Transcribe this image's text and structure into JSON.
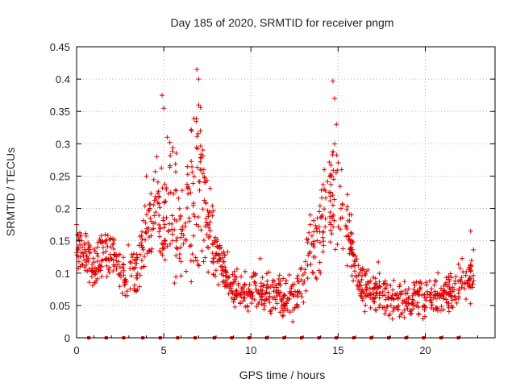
{
  "chart_data": {
    "type": "scatter",
    "title": "Day 185 of 2020, SRMTID for receiver pngm",
    "xlabel": "GPS time / hours",
    "ylabel": "SRMTID / TECUs",
    "xlim": [
      0,
      24
    ],
    "ylim": [
      0,
      0.45
    ],
    "x_ticks": [
      0,
      5,
      10,
      15,
      20
    ],
    "x_tick_labels": [
      "0",
      "5",
      "10",
      "15",
      "20"
    ],
    "y_ticks": [
      0,
      0.05,
      0.1,
      0.15,
      0.2,
      0.25,
      0.3,
      0.35,
      0.4,
      0.45
    ],
    "y_tick_labels": [
      "0",
      "0.05",
      "0.1",
      "0.15",
      "0.2",
      "0.25",
      "0.3",
      "0.35",
      "0.4",
      "0.45"
    ],
    "grid": true,
    "marker": "+",
    "colors": {
      "series": "#dd0000",
      "grid": "#b0b0b0",
      "axis": "#000000"
    },
    "baseline_markers_x": [
      0.7,
      1.7,
      2.7,
      3.8,
      4.8,
      5.8,
      6.8,
      7.9,
      8.9,
      9.9,
      10.9,
      11.9,
      12.9,
      13.9,
      14.9,
      15.9,
      16.9,
      17.9,
      18.9,
      19.9,
      20.9,
      21.9
    ],
    "envelope": [
      [
        0.0,
        0.12,
        0.16
      ],
      [
        0.5,
        0.11,
        0.15
      ],
      [
        1.0,
        0.08,
        0.12
      ],
      [
        1.5,
        0.1,
        0.15
      ],
      [
        2.0,
        0.11,
        0.15
      ],
      [
        2.5,
        0.08,
        0.12
      ],
      [
        3.0,
        0.07,
        0.11
      ],
      [
        3.5,
        0.08,
        0.13
      ],
      [
        4.0,
        0.13,
        0.21
      ],
      [
        4.5,
        0.15,
        0.24
      ],
      [
        5.0,
        0.12,
        0.22
      ],
      [
        5.5,
        0.14,
        0.3
      ],
      [
        6.0,
        0.11,
        0.2
      ],
      [
        6.5,
        0.12,
        0.26
      ],
      [
        7.0,
        0.15,
        0.33
      ],
      [
        7.5,
        0.13,
        0.22
      ],
      [
        8.0,
        0.1,
        0.16
      ],
      [
        8.5,
        0.08,
        0.12
      ],
      [
        9.0,
        0.06,
        0.1
      ],
      [
        10.0,
        0.05,
        0.09
      ],
      [
        11.0,
        0.05,
        0.09
      ],
      [
        12.0,
        0.04,
        0.08
      ],
      [
        12.5,
        0.05,
        0.08
      ],
      [
        13.0,
        0.06,
        0.12
      ],
      [
        13.5,
        0.1,
        0.17
      ],
      [
        14.0,
        0.13,
        0.22
      ],
      [
        14.5,
        0.16,
        0.27
      ],
      [
        15.0,
        0.15,
        0.25
      ],
      [
        15.5,
        0.12,
        0.19
      ],
      [
        16.0,
        0.09,
        0.13
      ],
      [
        16.5,
        0.05,
        0.09
      ],
      [
        17.0,
        0.05,
        0.09
      ],
      [
        18.0,
        0.04,
        0.08
      ],
      [
        19.0,
        0.04,
        0.07
      ],
      [
        20.0,
        0.04,
        0.08
      ],
      [
        21.0,
        0.05,
        0.08
      ],
      [
        22.0,
        0.06,
        0.11
      ],
      [
        22.8,
        0.07,
        0.12
      ]
    ],
    "point_density_per_hour": 55,
    "x_extent": [
      0.0,
      22.8
    ],
    "peaks": [
      [
        4.9,
        0.375
      ],
      [
        5.0,
        0.355
      ],
      [
        5.2,
        0.31
      ],
      [
        6.6,
        0.32
      ],
      [
        6.9,
        0.415
      ],
      [
        7.0,
        0.4
      ],
      [
        7.0,
        0.36
      ],
      [
        7.1,
        0.32
      ],
      [
        14.7,
        0.397
      ],
      [
        14.8,
        0.37
      ],
      [
        14.9,
        0.33
      ],
      [
        14.8,
        0.3
      ],
      [
        4.6,
        0.28
      ],
      [
        4.0,
        0.25
      ],
      [
        15.2,
        0.26
      ],
      [
        7.3,
        0.26
      ],
      [
        0.0,
        0.175
      ],
      [
        22.6,
        0.165
      ],
      [
        13.4,
        0.19
      ],
      [
        12.4,
        0.025
      ]
    ]
  }
}
